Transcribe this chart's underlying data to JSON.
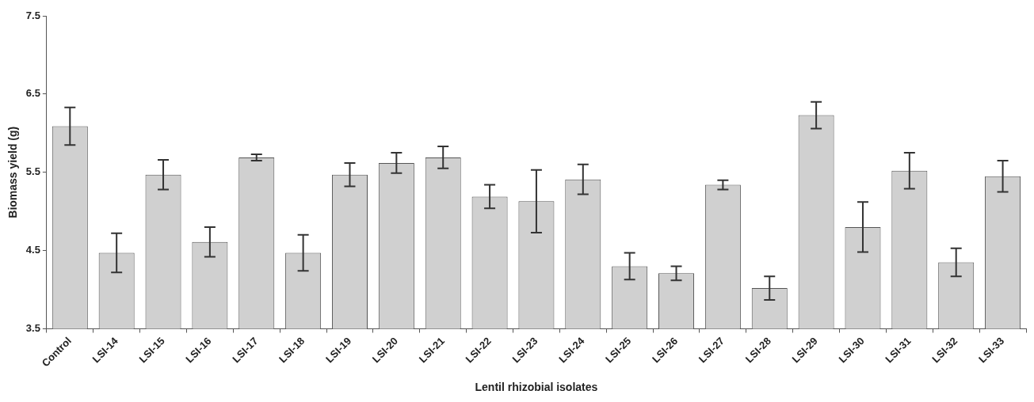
{
  "chart_data": {
    "type": "bar",
    "xlabel": "Lentil rhizobial isolates",
    "ylabel": "Biomass yield (g)",
    "categories": [
      "Control",
      "LSI-14",
      "LSI-15",
      "LSI-16",
      "LSI-17",
      "LSI-18",
      "LSI-19",
      "LSI-20",
      "LSI-21",
      "LSI-22",
      "LSI-23",
      "LSI-24",
      "LSI-25",
      "LSI-26",
      "LSI-27",
      "LSI-28",
      "LSI-29",
      "LSI-30",
      "LSI-31",
      "LSI-32",
      "LSI-33"
    ],
    "values": [
      6.09,
      4.47,
      5.47,
      4.61,
      5.69,
      4.47,
      5.47,
      5.62,
      5.69,
      5.19,
      5.13,
      5.41,
      4.3,
      4.21,
      5.34,
      4.02,
      6.23,
      4.8,
      5.52,
      4.35,
      5.45
    ],
    "errors": [
      0.24,
      0.25,
      0.19,
      0.19,
      0.04,
      0.23,
      0.15,
      0.13,
      0.14,
      0.15,
      0.4,
      0.19,
      0.17,
      0.09,
      0.06,
      0.15,
      0.17,
      0.32,
      0.23,
      0.18,
      0.2
    ],
    "color": "#d0d0d0",
    "ylim": [
      3.5,
      7.5
    ],
    "yticks": [
      3.5,
      4.5,
      5.5,
      6.5,
      7.5
    ],
    "grid": false,
    "legend": false
  }
}
